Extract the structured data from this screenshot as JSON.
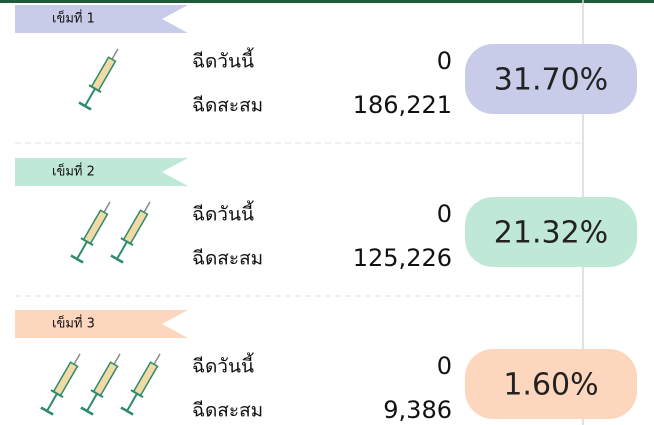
{
  "doses": [
    {
      "label": "เข็มที่ 1",
      "today_label": "ฉีดวันนี้",
      "today_value": "0",
      "cumulative_label": "ฉีดสะสม",
      "cumulative_value": "186,221",
      "percent": "31.70%",
      "color": "#c8cce9"
    },
    {
      "label": "เข็มที่ 2",
      "today_label": "ฉีดวันนี้",
      "today_value": "0",
      "cumulative_label": "ฉีดสะสม",
      "cumulative_value": "125,226",
      "percent": "21.32%",
      "color": "#bfe9d6"
    },
    {
      "label": "เข็มที่ 3",
      "today_label": "ฉีดวันนี้",
      "today_value": "0",
      "cumulative_label": "ฉีดสะสม",
      "cumulative_value": "9,386",
      "percent": "1.60%",
      "color": "#fdd6be"
    }
  ]
}
